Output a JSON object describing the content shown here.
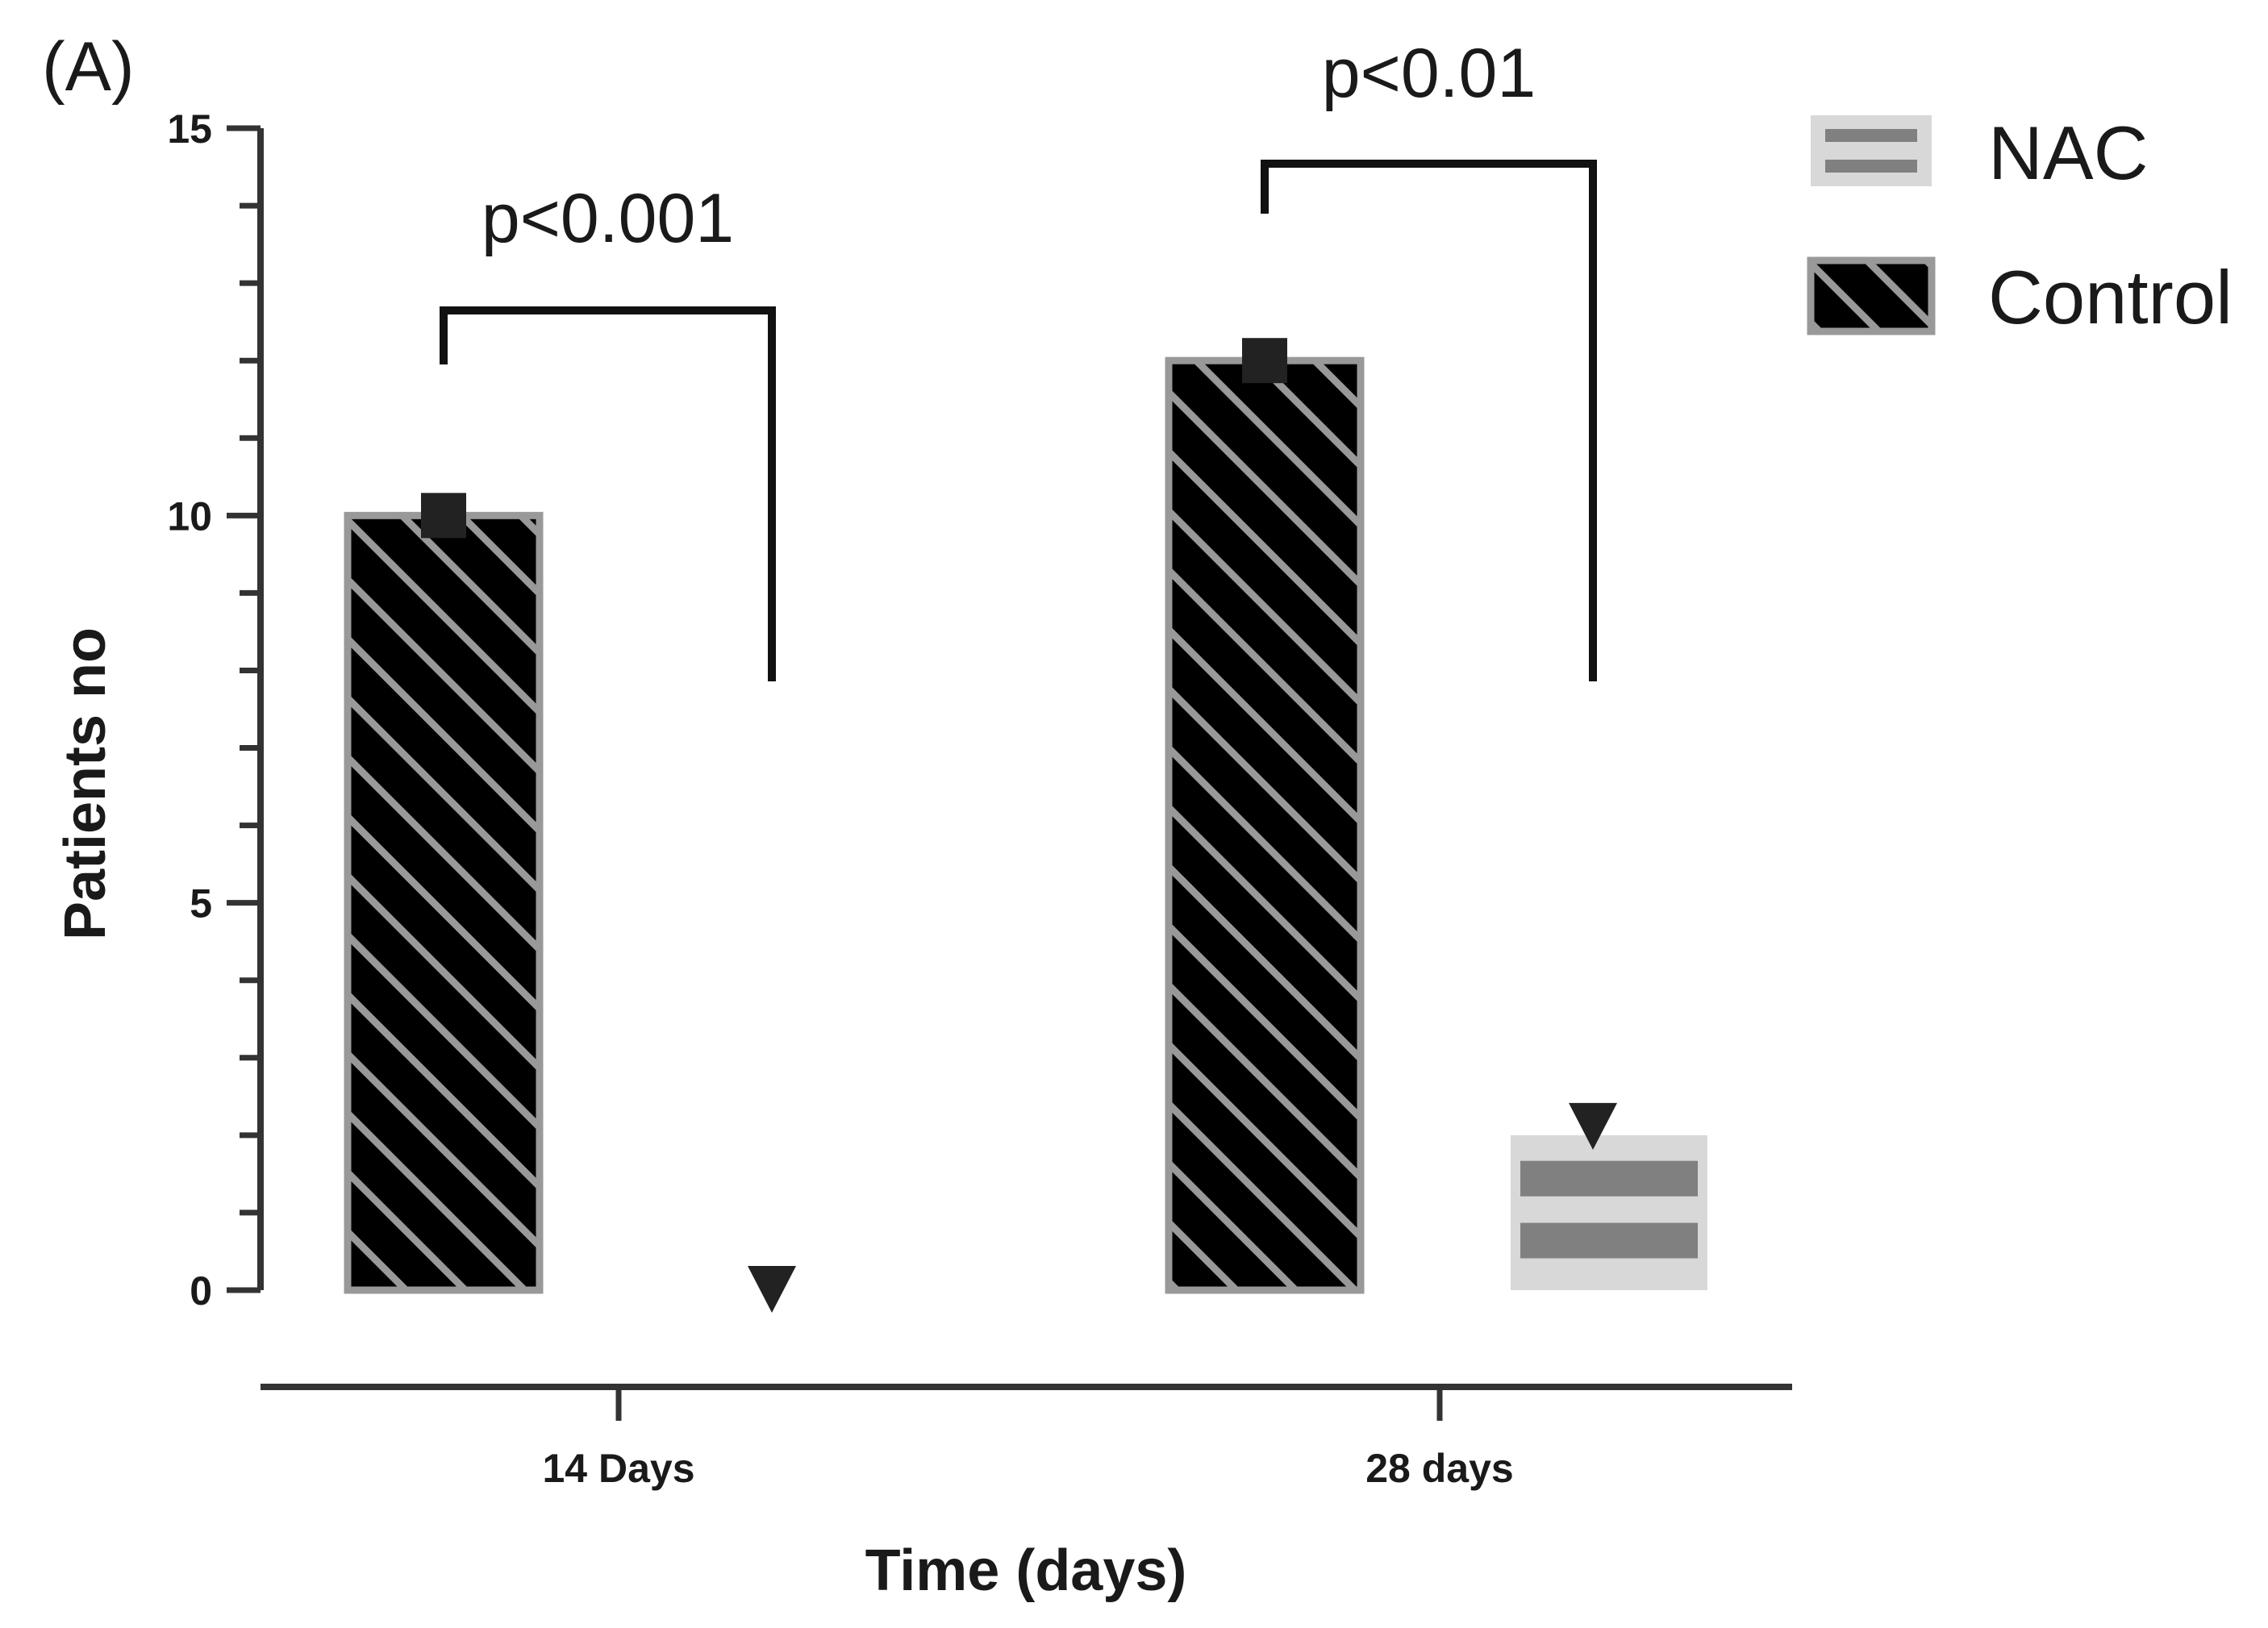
{
  "panel_label": "(A)",
  "chart_data": {
    "type": "bar",
    "title": "",
    "xlabel": "Time (days)",
    "ylabel": "Patients no",
    "ylim": [
      0,
      15
    ],
    "yticks": [
      0,
      5,
      10,
      15
    ],
    "categories": [
      "14 Days",
      "28 days"
    ],
    "series": [
      {
        "name": "Control",
        "values": [
          10,
          12
        ]
      },
      {
        "name": "NAC",
        "values": [
          0,
          2
        ]
      }
    ],
    "significance": [
      {
        "label": "p<0.001",
        "category": "14 Days"
      },
      {
        "label": "p<0.01",
        "category": "28 days"
      }
    ],
    "legend_position": "top-right",
    "grid": false
  },
  "colors": {
    "control_fill": "#000000",
    "control_hatch": "#999999",
    "nac_fill": "#d8d8d8",
    "nac_stripe": "#808080",
    "axis": "#333333",
    "marker": "#222222"
  }
}
